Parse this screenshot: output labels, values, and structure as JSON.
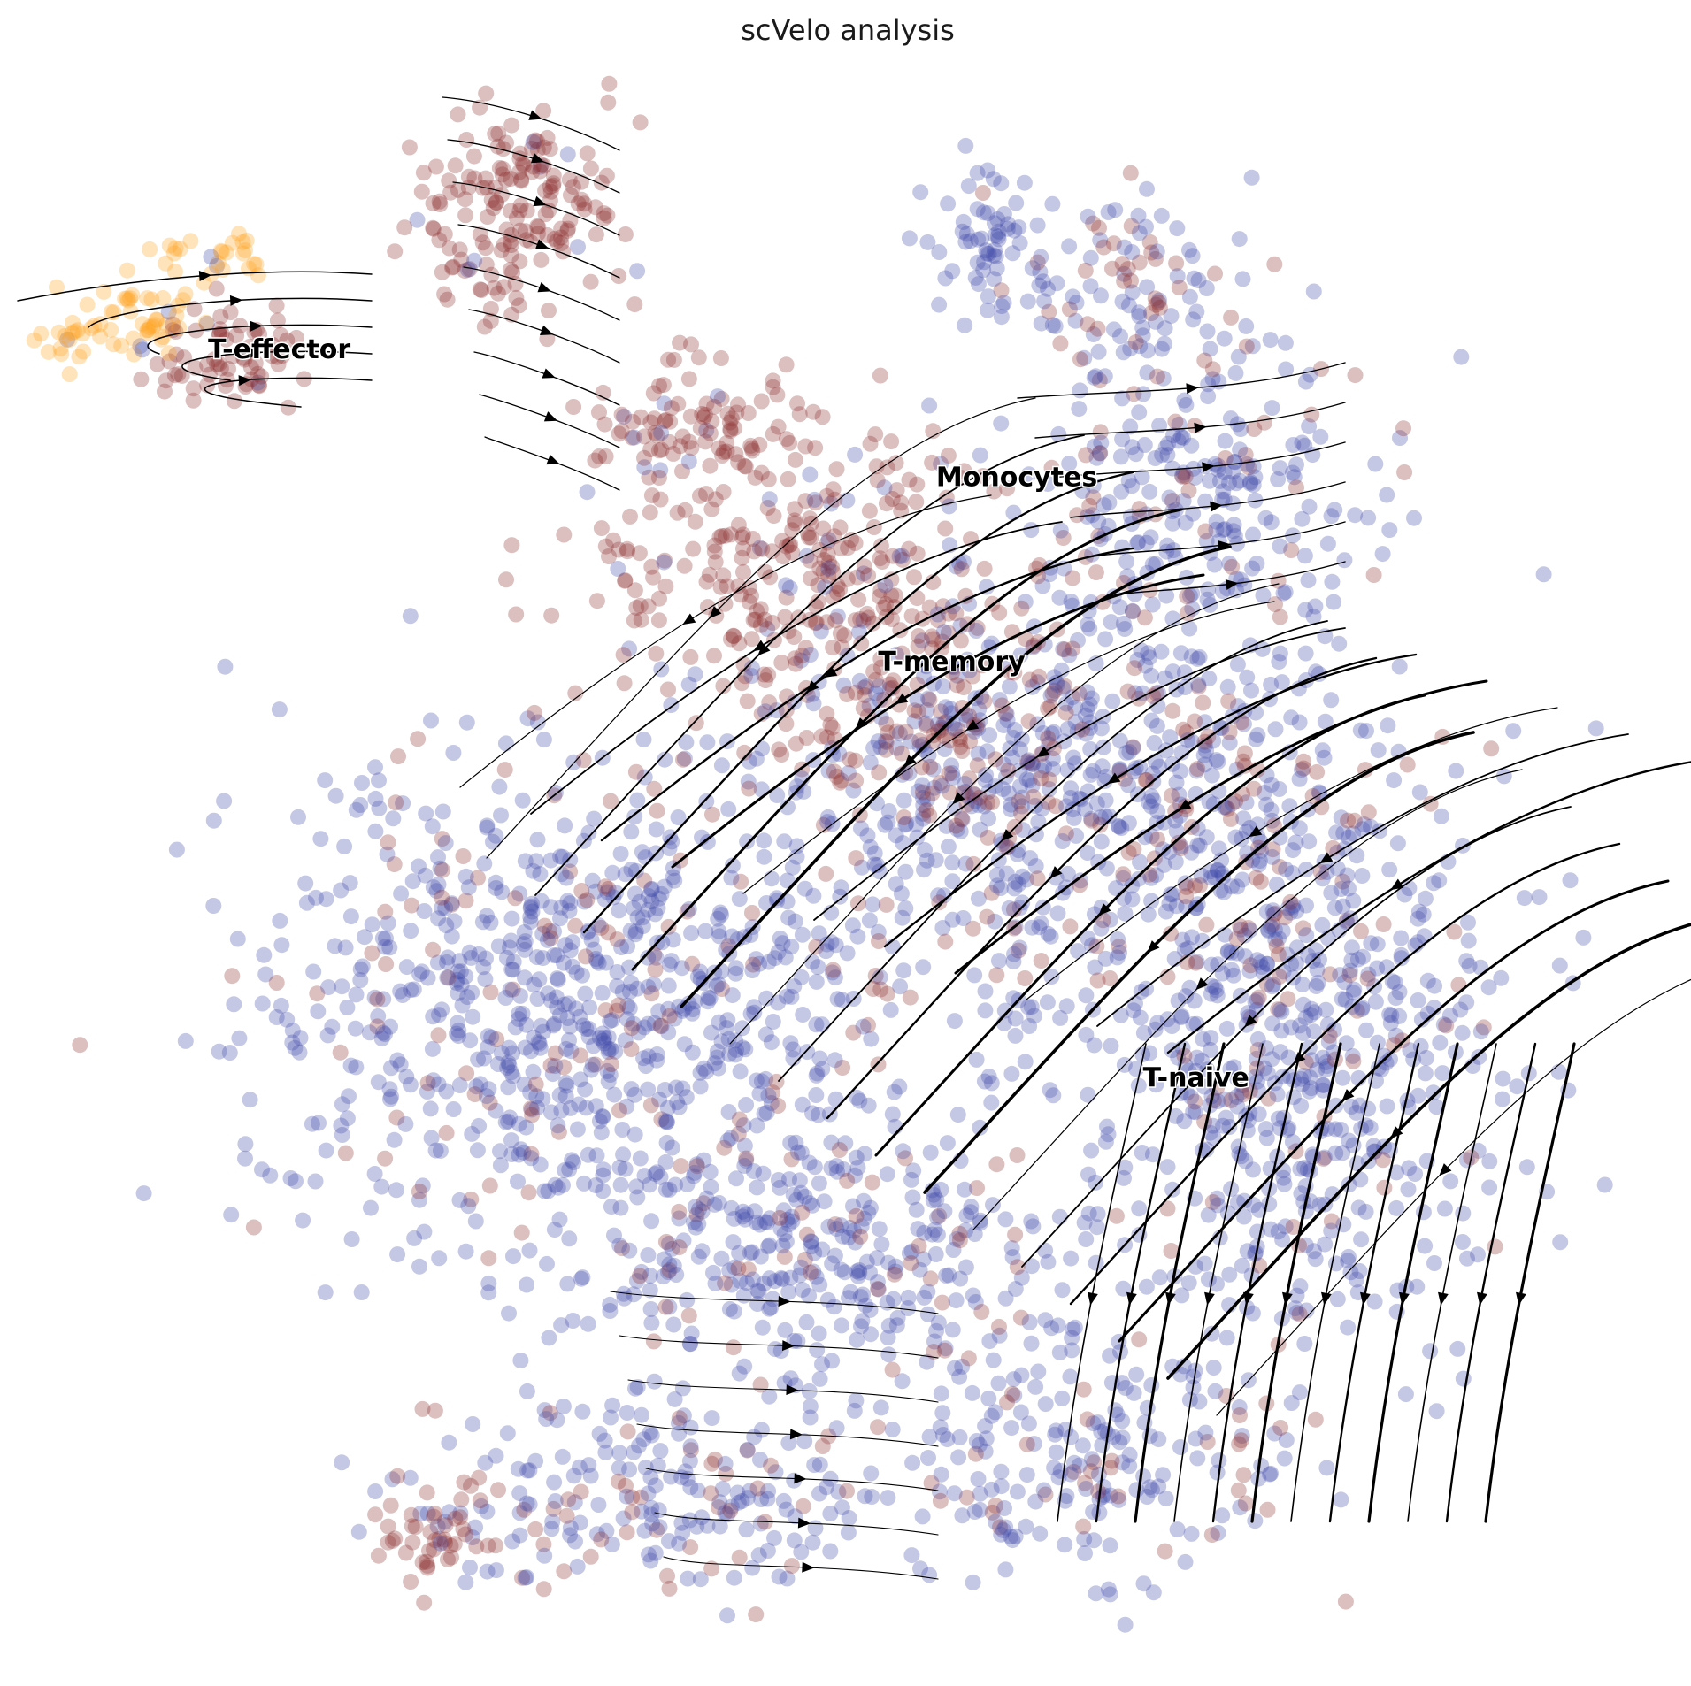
{
  "chart_data": {
    "type": "scatter",
    "title": "scVelo analysis",
    "xlabel": "",
    "ylabel": "",
    "axes_visible": false,
    "grid": false,
    "legend": "on data",
    "overlay": "velocity streamlines",
    "colors": {
      "T-naive": "#3f4aa8",
      "T-memory": "#8b2a2a",
      "Monocytes": "#8b2a2a",
      "T-effector": "#ffa21e",
      "streamline": "#000000"
    },
    "clusters": [
      {
        "name": "T-effector",
        "x": 0.115,
        "y": 0.815
      },
      {
        "name": "Monocytes",
        "x": 0.555,
        "y": 0.735
      },
      {
        "name": "T-memory",
        "x": 0.52,
        "y": 0.62
      },
      {
        "name": "T-naive",
        "x": 0.68,
        "y": 0.36
      }
    ]
  }
}
